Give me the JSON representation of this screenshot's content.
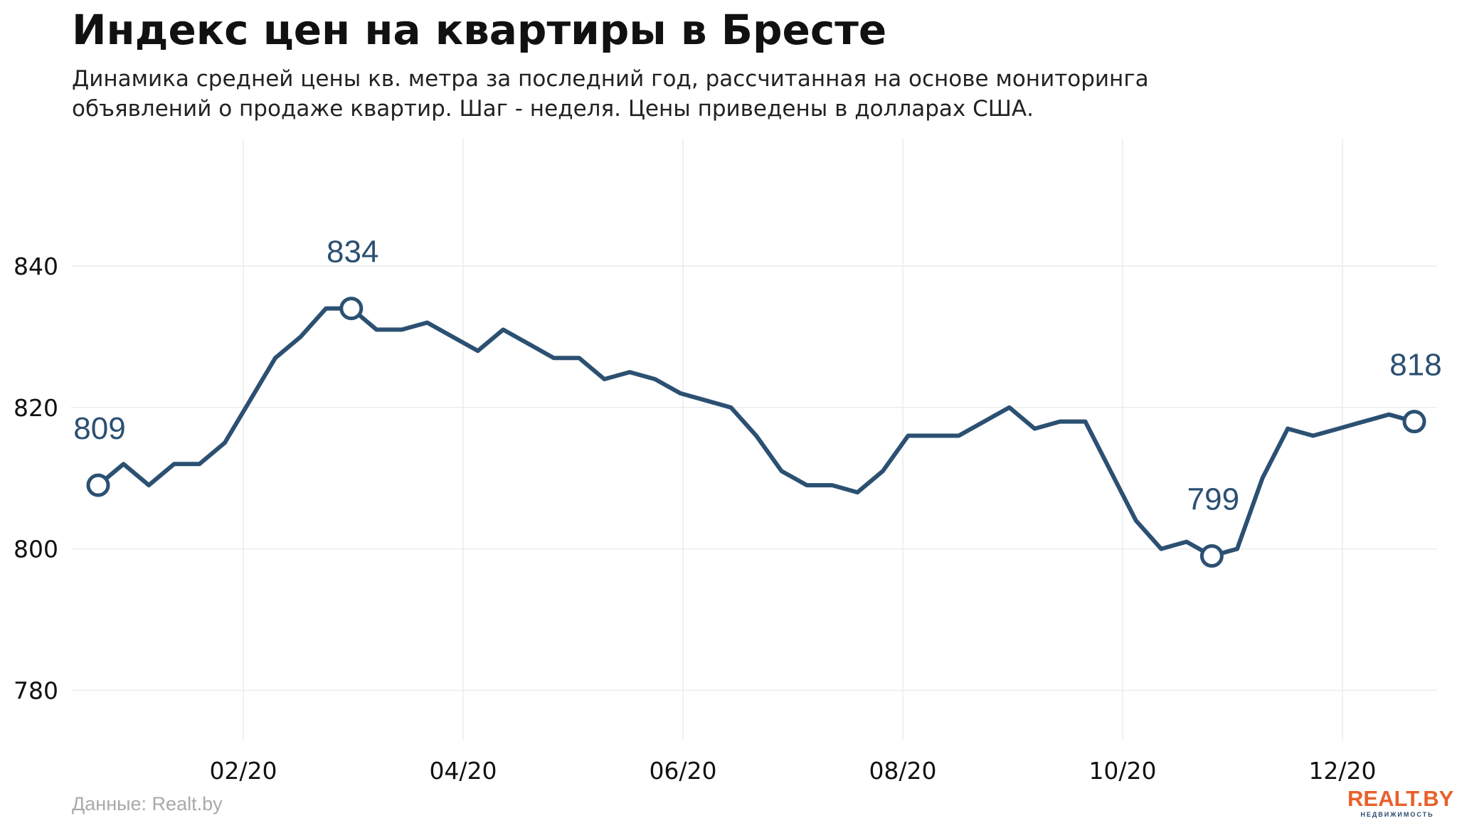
{
  "header": {
    "title": "Индекс цен на квартиры в Бресте",
    "subtitle_line1": "Динамика средней цены кв. метра за последний год, рассчитанная на основе мониторинга",
    "subtitle_line2": "объявлений о продаже квартир. Шаг - неделя. Цены приведены в долларах США."
  },
  "footer": {
    "source": "Данные: Realt.by",
    "logo_main": "REALT.BY",
    "logo_sub": "НЕДВИЖИМОСТЬ"
  },
  "colors": {
    "line": "#2b5072",
    "grid": "#ececec",
    "label": "#2b5072",
    "axis_text": "#111111",
    "logo_accent": "#e8602c"
  },
  "chart_data": {
    "type": "line",
    "x_tick_labels": [
      "02/20",
      "04/20",
      "06/20",
      "08/20",
      "10/20",
      "12/20"
    ],
    "y_ticks": [
      780,
      800,
      820,
      840
    ],
    "ylim": [
      773,
      858
    ],
    "grid": true,
    "series": [
      {
        "values": [
          809,
          812,
          809,
          812,
          812,
          815,
          821,
          827,
          830,
          834,
          834,
          831,
          831,
          832,
          830,
          828,
          831,
          829,
          827,
          827,
          824,
          825,
          824,
          822,
          821,
          820,
          816,
          811,
          809,
          809,
          808,
          811,
          816,
          816,
          816,
          818,
          820,
          817,
          818,
          818,
          811,
          804,
          800,
          801,
          799,
          800,
          810,
          817,
          816,
          817,
          818,
          819,
          818
        ],
        "markers": [
          {
            "index": 0,
            "label": "809"
          },
          {
            "index": 10,
            "label": "834"
          },
          {
            "index": 44,
            "label": "799"
          },
          {
            "index": 52,
            "label": "818"
          }
        ]
      }
    ]
  }
}
